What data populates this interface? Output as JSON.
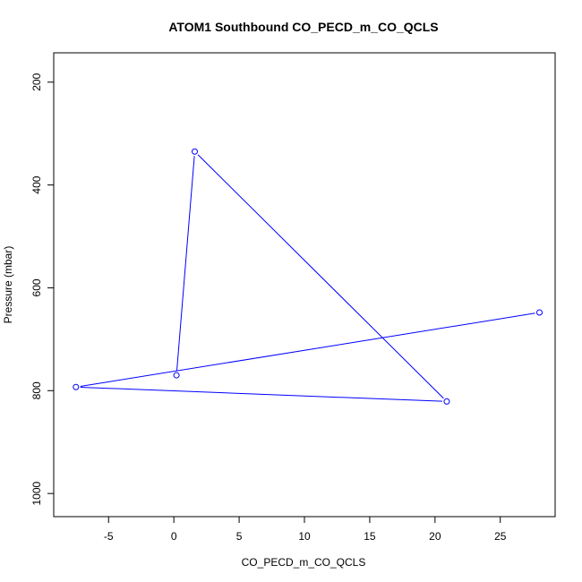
{
  "chart_data": {
    "type": "line",
    "title": "ATOM1 Southbound CO_PECD_m_CO_QCLS",
    "xlabel": "CO_PECD_m_CO_QCLS",
    "ylabel": "Pressure (mbar)",
    "xlim": [
      -9.2,
      29.2
    ],
    "ylim": [
      1045,
      143
    ],
    "y_reversed": true,
    "grid": false,
    "xticks": [
      -5,
      0,
      5,
      10,
      15,
      20,
      25
    ],
    "yticks": [
      200,
      400,
      600,
      800,
      1000
    ],
    "series": [
      {
        "color": "#0000ff",
        "marker": "open-circle",
        "x": [
          28.0,
          -7.5,
          20.9,
          1.6,
          0.2
        ],
        "y": [
          648,
          793,
          821,
          335,
          770
        ]
      }
    ]
  }
}
